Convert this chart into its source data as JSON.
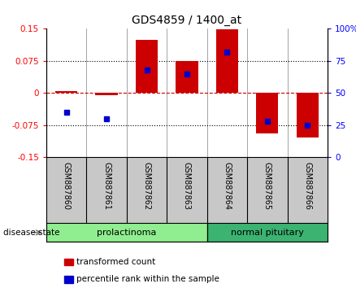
{
  "title": "GDS4859 / 1400_at",
  "samples": [
    "GSM887860",
    "GSM887861",
    "GSM887862",
    "GSM887863",
    "GSM887864",
    "GSM887865",
    "GSM887866"
  ],
  "transformed_counts": [
    0.005,
    -0.005,
    0.125,
    0.075,
    0.148,
    -0.095,
    -0.105
  ],
  "percentile_ranks": [
    35,
    30,
    68,
    65,
    82,
    28,
    25
  ],
  "groups": [
    {
      "label": "prolactinoma",
      "indices": [
        0,
        1,
        2,
        3
      ],
      "color": "#90EE90"
    },
    {
      "label": "normal pituitary",
      "indices": [
        4,
        5,
        6
      ],
      "color": "#3CB371"
    }
  ],
  "ylim_left": [
    -0.15,
    0.15
  ],
  "ylim_right": [
    0,
    100
  ],
  "yticks_left": [
    -0.15,
    -0.075,
    0,
    0.075,
    0.15
  ],
  "yticks_right": [
    0,
    25,
    50,
    75,
    100
  ],
  "bar_color": "#CC0000",
  "dot_color": "#0000CC",
  "hline_color": "#CC0000",
  "bg_labels": "#C8C8C8",
  "legend_bar_label": "transformed count",
  "legend_dot_label": "percentile rank within the sample",
  "disease_state_label": "disease state",
  "bar_width": 0.55
}
